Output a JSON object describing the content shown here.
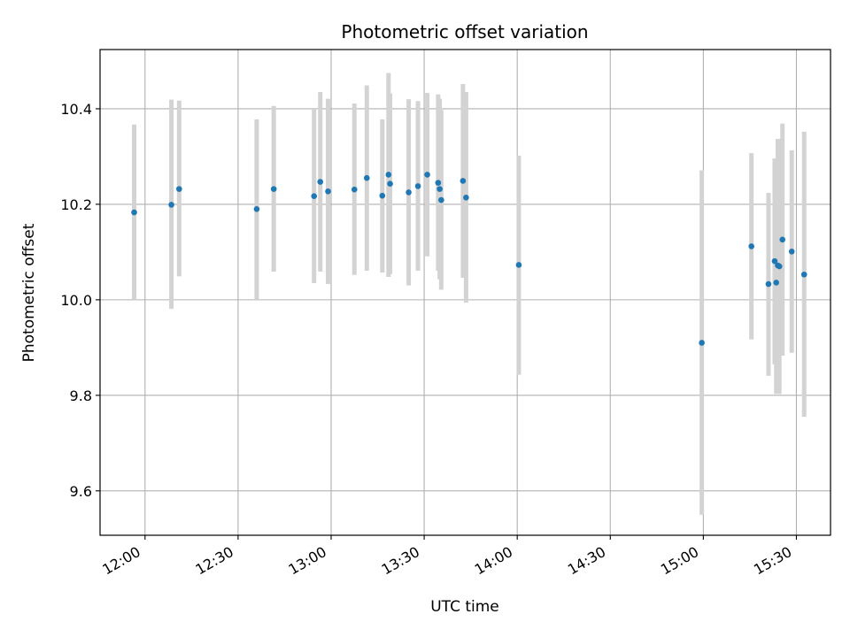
{
  "chart_data": {
    "type": "scatter",
    "title": "Photometric offset variation",
    "xlabel": "UTC time",
    "ylabel": "Photometric offset",
    "xlim": [
      "11:45:30",
      "15:41:00"
    ],
    "ylim": [
      9.507,
      10.524
    ],
    "x_ticks": [
      "12:00",
      "12:30",
      "13:00",
      "13:30",
      "14:00",
      "14:30",
      "15:00",
      "15:30"
    ],
    "y_ticks": [
      "9.6",
      "9.8",
      "10.0",
      "10.2",
      "10.4"
    ],
    "grid": true,
    "colors": {
      "point": "#1f77b4",
      "errorbar": "#d3d3d3",
      "grid": "#b0b0b0",
      "axes": "#000000"
    },
    "points": [
      {
        "x": "11:56:30",
        "y": 10.183,
        "lo": 10.0,
        "hi": 10.367
      },
      {
        "x": "12:08:30",
        "y": 10.199,
        "lo": 9.981,
        "hi": 10.419
      },
      {
        "x": "12:11:00",
        "y": 10.232,
        "lo": 10.049,
        "hi": 10.417
      },
      {
        "x": "12:36:00",
        "y": 10.19,
        "lo": 10.0,
        "hi": 10.378
      },
      {
        "x": "12:41:30",
        "y": 10.232,
        "lo": 10.059,
        "hi": 10.406
      },
      {
        "x": "12:54:30",
        "y": 10.217,
        "lo": 10.035,
        "hi": 10.4
      },
      {
        "x": "12:56:30",
        "y": 10.247,
        "lo": 10.059,
        "hi": 10.435
      },
      {
        "x": "12:59:00",
        "y": 10.227,
        "lo": 10.033,
        "hi": 10.421
      },
      {
        "x": "13:07:30",
        "y": 10.231,
        "lo": 10.052,
        "hi": 10.411
      },
      {
        "x": "13:11:30",
        "y": 10.255,
        "lo": 10.061,
        "hi": 10.449
      },
      {
        "x": "13:16:30",
        "y": 10.218,
        "lo": 10.057,
        "hi": 10.378
      },
      {
        "x": "13:18:30",
        "y": 10.262,
        "lo": 10.048,
        "hi": 10.475
      },
      {
        "x": "13:19:00",
        "y": 10.243,
        "lo": 10.054,
        "hi": 10.432
      },
      {
        "x": "13:25:00",
        "y": 10.225,
        "lo": 10.03,
        "hi": 10.42
      },
      {
        "x": "13:28:00",
        "y": 10.238,
        "lo": 10.061,
        "hi": 10.416
      },
      {
        "x": "13:31:00",
        "y": 10.262,
        "lo": 10.091,
        "hi": 10.433
      },
      {
        "x": "13:34:30",
        "y": 10.245,
        "lo": 10.061,
        "hi": 10.43
      },
      {
        "x": "13:35:00",
        "y": 10.232,
        "lo": 10.043,
        "hi": 10.421
      },
      {
        "x": "13:35:30",
        "y": 10.209,
        "lo": 10.021,
        "hi": 10.397
      },
      {
        "x": "13:42:30",
        "y": 10.249,
        "lo": 10.046,
        "hi": 10.452
      },
      {
        "x": "13:43:30",
        "y": 10.214,
        "lo": 9.994,
        "hi": 10.435
      },
      {
        "x": "14:00:30",
        "y": 10.073,
        "lo": 9.843,
        "hi": 10.302
      },
      {
        "x": "14:59:30",
        "y": 9.91,
        "lo": 9.55,
        "hi": 10.271
      },
      {
        "x": "15:15:30",
        "y": 10.112,
        "lo": 9.917,
        "hi": 10.307
      },
      {
        "x": "15:21:00",
        "y": 10.033,
        "lo": 9.841,
        "hi": 10.224
      },
      {
        "x": "15:23:00",
        "y": 10.081,
        "lo": 9.865,
        "hi": 10.296
      },
      {
        "x": "15:23:30",
        "y": 10.036,
        "lo": 9.803,
        "hi": 10.27
      },
      {
        "x": "15:24:00",
        "y": 10.072,
        "lo": 9.807,
        "hi": 10.337
      },
      {
        "x": "15:24:30",
        "y": 10.07,
        "lo": 9.803,
        "hi": 10.337
      },
      {
        "x": "15:25:30",
        "y": 10.126,
        "lo": 9.883,
        "hi": 10.369
      },
      {
        "x": "15:28:30",
        "y": 10.101,
        "lo": 9.889,
        "hi": 10.313
      },
      {
        "x": "15:32:30",
        "y": 10.053,
        "lo": 9.755,
        "hi": 10.352
      }
    ]
  }
}
